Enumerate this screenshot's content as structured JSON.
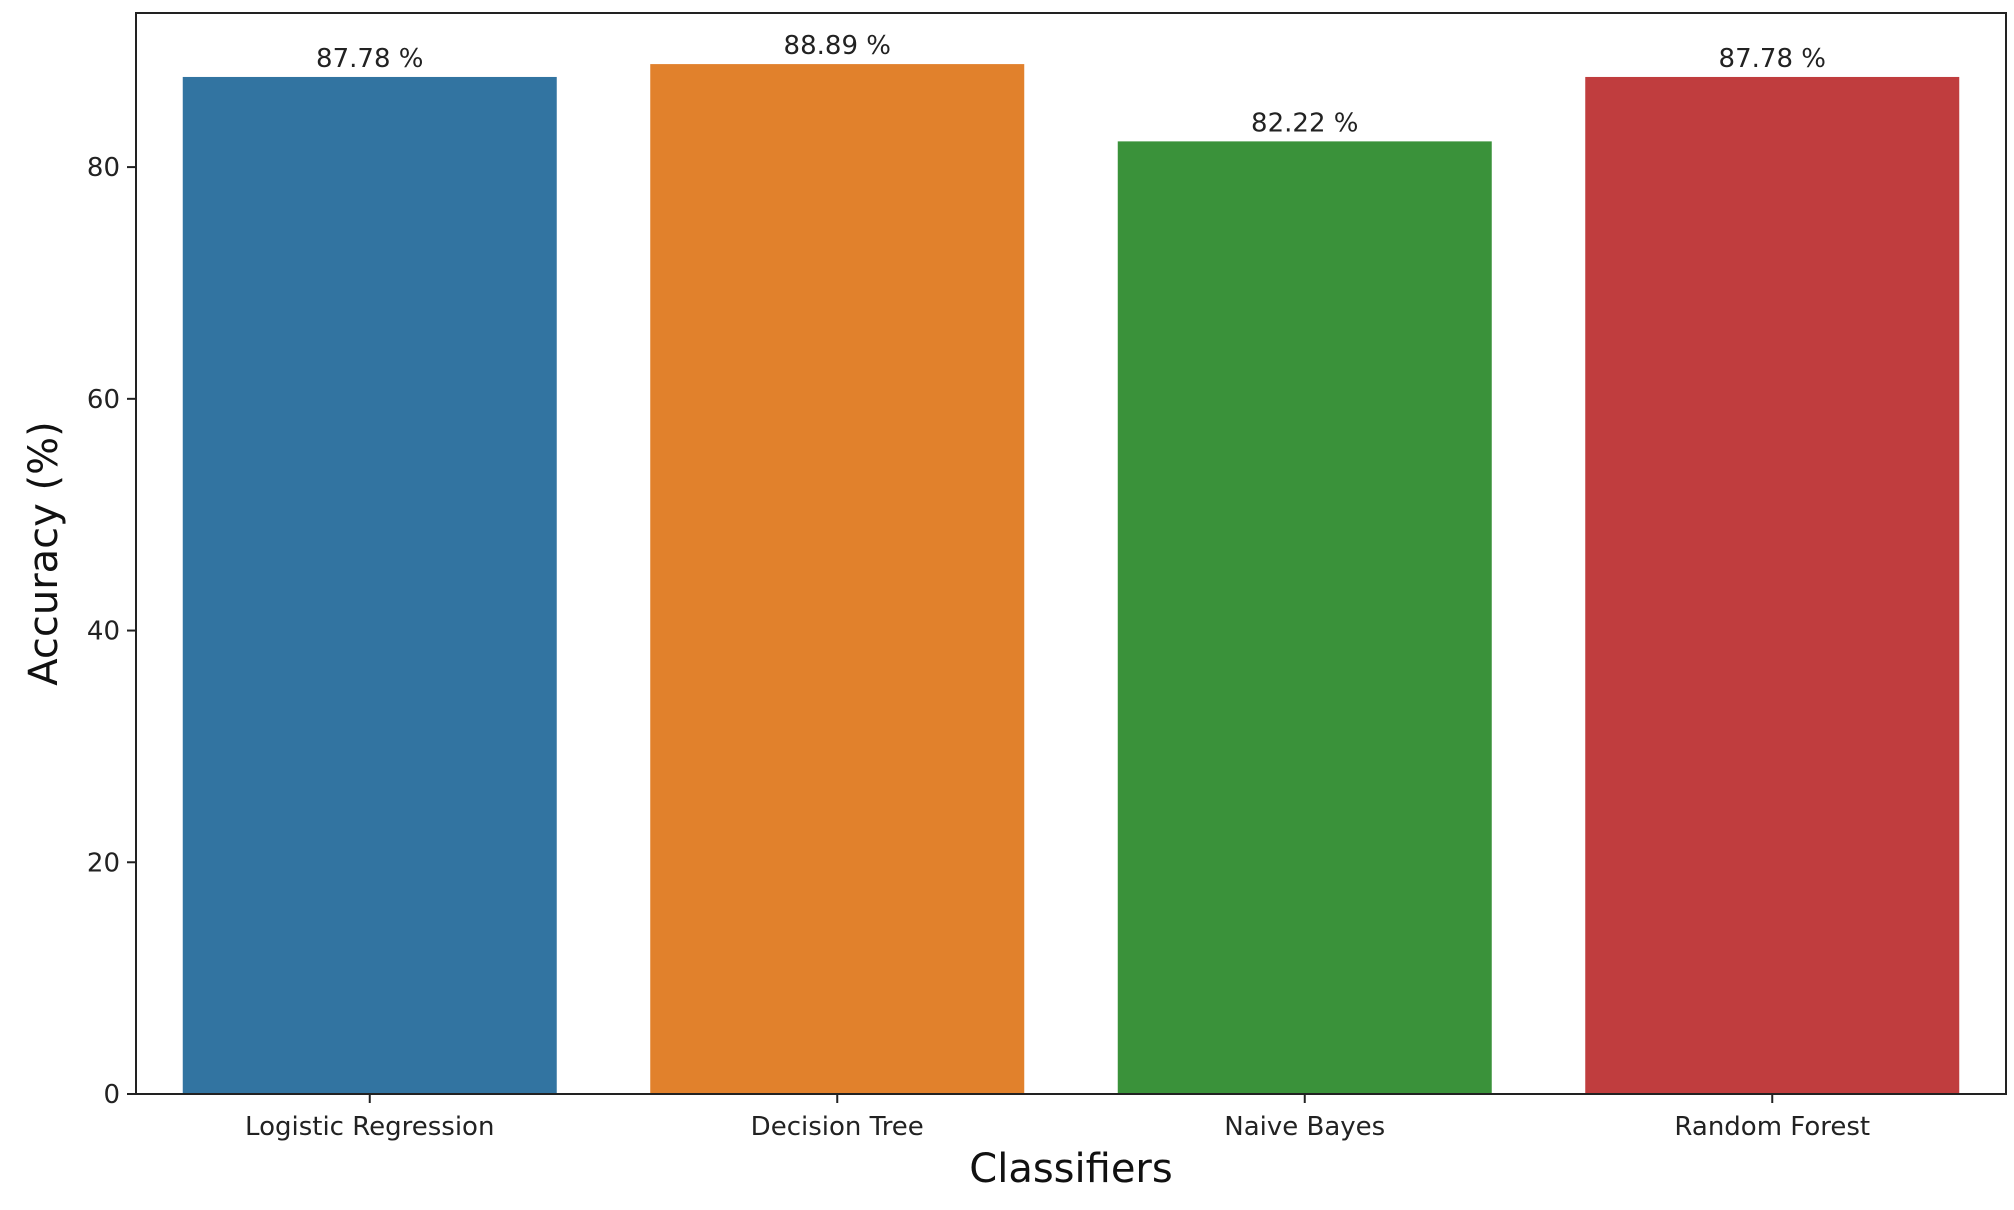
{
  "chart_data": {
    "type": "bar",
    "title": "",
    "xlabel": "Classifiers",
    "ylabel": "Accuracy (%)",
    "categories": [
      "Logistic Regression",
      "Decision Tree",
      "Naive Bayes",
      "Random Forest"
    ],
    "values": [
      87.78,
      88.89,
      82.22,
      87.78
    ],
    "data_labels": [
      "87.78 %",
      "88.89 %",
      "82.22 %",
      "87.78 %"
    ],
    "colors": [
      "#3274a1",
      "#e1812c",
      "#3a923a",
      "#c03d3e"
    ],
    "ylim": [
      0,
      93.3
    ],
    "yticks": [
      0,
      20,
      40,
      60,
      80
    ],
    "ytick_labels": [
      "0",
      "20",
      "40",
      "60",
      "80"
    ],
    "grid": false,
    "legend": "none"
  }
}
